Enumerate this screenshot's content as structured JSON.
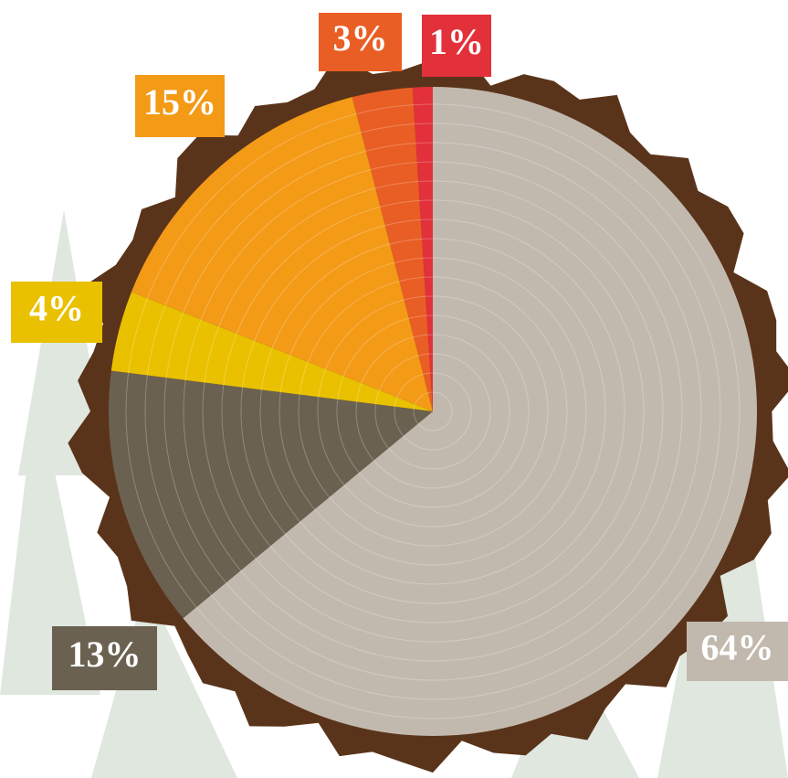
{
  "chart_data": {
    "type": "pie",
    "categories": [
      null,
      null,
      null,
      null,
      null,
      null
    ],
    "values": [
      64,
      13,
      4,
      15,
      3,
      1
    ],
    "value_labels": [
      "64%",
      "13%",
      "4%",
      "15%",
      "3%",
      "1%"
    ],
    "colors": [
      "#c2b9ae",
      "#6b6150",
      "#e9c100",
      "#f39a17",
      "#e95e24",
      "#e2313a"
    ]
  }
}
